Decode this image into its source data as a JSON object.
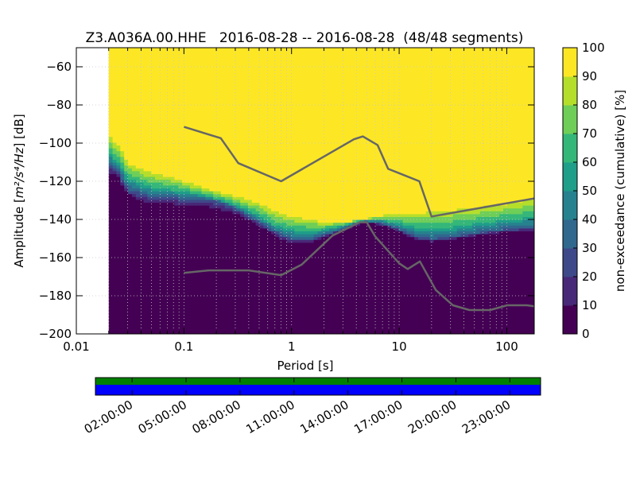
{
  "chart_data": {
    "type": "heatmap",
    "title": "Z3.A036A.00.HHE   2016-08-28 -- 2016-08-28  (48/48 segments)",
    "xlabel": "Period [s]",
    "ylabel_prefix": "Amplitude [",
    "ylabel_units": "m²/s⁴/Hz",
    "ylabel_suffix": "] [dB]",
    "x_scale": "log",
    "xlim": [
      0.01,
      180
    ],
    "ylim": [
      -200,
      -50
    ],
    "x_ticks": [
      {
        "value": 0.01,
        "label": "0.01"
      },
      {
        "value": 0.1,
        "label": "0.1"
      },
      {
        "value": 1,
        "label": "1"
      },
      {
        "value": 10,
        "label": "10"
      },
      {
        "value": 100,
        "label": "100"
      }
    ],
    "y_ticks": [
      {
        "value": -60,
        "label": "−60"
      },
      {
        "value": -80,
        "label": "−80"
      },
      {
        "value": -100,
        "label": "−100"
      },
      {
        "value": -120,
        "label": "−120"
      },
      {
        "value": -140,
        "label": "−140"
      },
      {
        "value": -160,
        "label": "−160"
      },
      {
        "value": -180,
        "label": "−180"
      },
      {
        "value": -200,
        "label": "−200"
      }
    ],
    "grid": true,
    "data_start_period": 0.02,
    "colorbar": {
      "label": "non-exceedance (cumulative) [%]",
      "range": [
        0,
        100
      ],
      "ticks": [
        {
          "value": 0,
          "label": "0"
        },
        {
          "value": 10,
          "label": "10"
        },
        {
          "value": 20,
          "label": "20"
        },
        {
          "value": 30,
          "label": "30"
        },
        {
          "value": 40,
          "label": "40"
        },
        {
          "value": 50,
          "label": "50"
        },
        {
          "value": 60,
          "label": "60"
        },
        {
          "value": 70,
          "label": "70"
        },
        {
          "value": 80,
          "label": "80"
        },
        {
          "value": 90,
          "label": "90"
        },
        {
          "value": 100,
          "label": "100"
        }
      ],
      "colormap": [
        "#440154",
        "#482878",
        "#3e4989",
        "#31688e",
        "#26828e",
        "#1f9e89",
        "#35b779",
        "#6ece58",
        "#b5de2b",
        "#fde725"
      ]
    },
    "percentile_bands": {
      "x": [
        0.02,
        0.025,
        0.03,
        0.04,
        0.05,
        0.07,
        0.1,
        0.15,
        0.2,
        0.3,
        0.5,
        0.7,
        1.0,
        1.5,
        2.0,
        3.0,
        4.0,
        5.0,
        7.0,
        10.0,
        15.0,
        20.0,
        30.0,
        50.0,
        70.0,
        100.0,
        150.0,
        180.0
      ],
      "p0": [
        -117,
        -120,
        -128,
        -132,
        -133,
        -133,
        -134,
        -134,
        -136,
        -138,
        -144,
        -150,
        -153,
        -153,
        -150,
        -146,
        -143,
        -142,
        -143,
        -147,
        -152,
        -152,
        -151,
        -149,
        -148,
        -147,
        -147,
        -147
      ],
      "p30": [
        -110,
        -115,
        -124,
        -126,
        -128,
        -128,
        -129,
        -129,
        -130,
        -134,
        -141,
        -146,
        -150,
        -150,
        -148,
        -145,
        -142,
        -141,
        -142,
        -145,
        -149,
        -150,
        -149,
        -147,
        -146,
        -145,
        -144,
        -144
      ],
      "p60": [
        -105,
        -110,
        -118,
        -121,
        -123,
        -124,
        -125,
        -127,
        -129,
        -132,
        -138,
        -143,
        -145,
        -146,
        -145,
        -143,
        -141,
        -140,
        -140,
        -142,
        -144,
        -145,
        -144,
        -142,
        -141,
        -140,
        -139,
        -139
      ],
      "p100": [
        -93,
        -98,
        -108,
        -111,
        -113,
        -115,
        -118,
        -122,
        -124,
        -126,
        -129,
        -133,
        -136,
        -138,
        -140,
        -141,
        -140,
        -139,
        -137,
        -136,
        -134,
        -133,
        -132,
        -131,
        -130,
        -129,
        -127,
        -125
      ]
    },
    "model_curves": [
      {
        "x": [
          0.1,
          0.22,
          0.32,
          0.8,
          3.8,
          4.6,
          6.3,
          7.9,
          15.4,
          20,
          180
        ],
        "y": [
          -91.5,
          -97.4,
          -110.5,
          -120,
          -98,
          -96.5,
          -101,
          -113.5,
          -120,
          -138.5,
          -129
        ]
      },
      {
        "x": [
          0.1,
          0.17,
          0.4,
          0.8,
          1.24,
          2.4,
          4.3,
          5.0,
          6.0,
          10,
          12,
          15.6,
          21.9,
          31.6,
          45,
          70,
          101,
          154,
          180
        ],
        "y": [
          -168,
          -166.7,
          -166.7,
          -169.2,
          -163.7,
          -148.5,
          -141.5,
          -141.5,
          -149,
          -163,
          -166,
          -162,
          -177,
          -185,
          -187.5,
          -187.5,
          -185,
          -185,
          -185.5
        ]
      }
    ]
  },
  "timeline": {
    "tick_labels": [
      "02:00:00",
      "05:00:00",
      "08:00:00",
      "11:00:00",
      "14:00:00",
      "17:00:00",
      "20:00:00",
      "23:00:00"
    ],
    "coverage_colors": {
      "top": "#008000",
      "bottom": "#0000ff"
    }
  }
}
